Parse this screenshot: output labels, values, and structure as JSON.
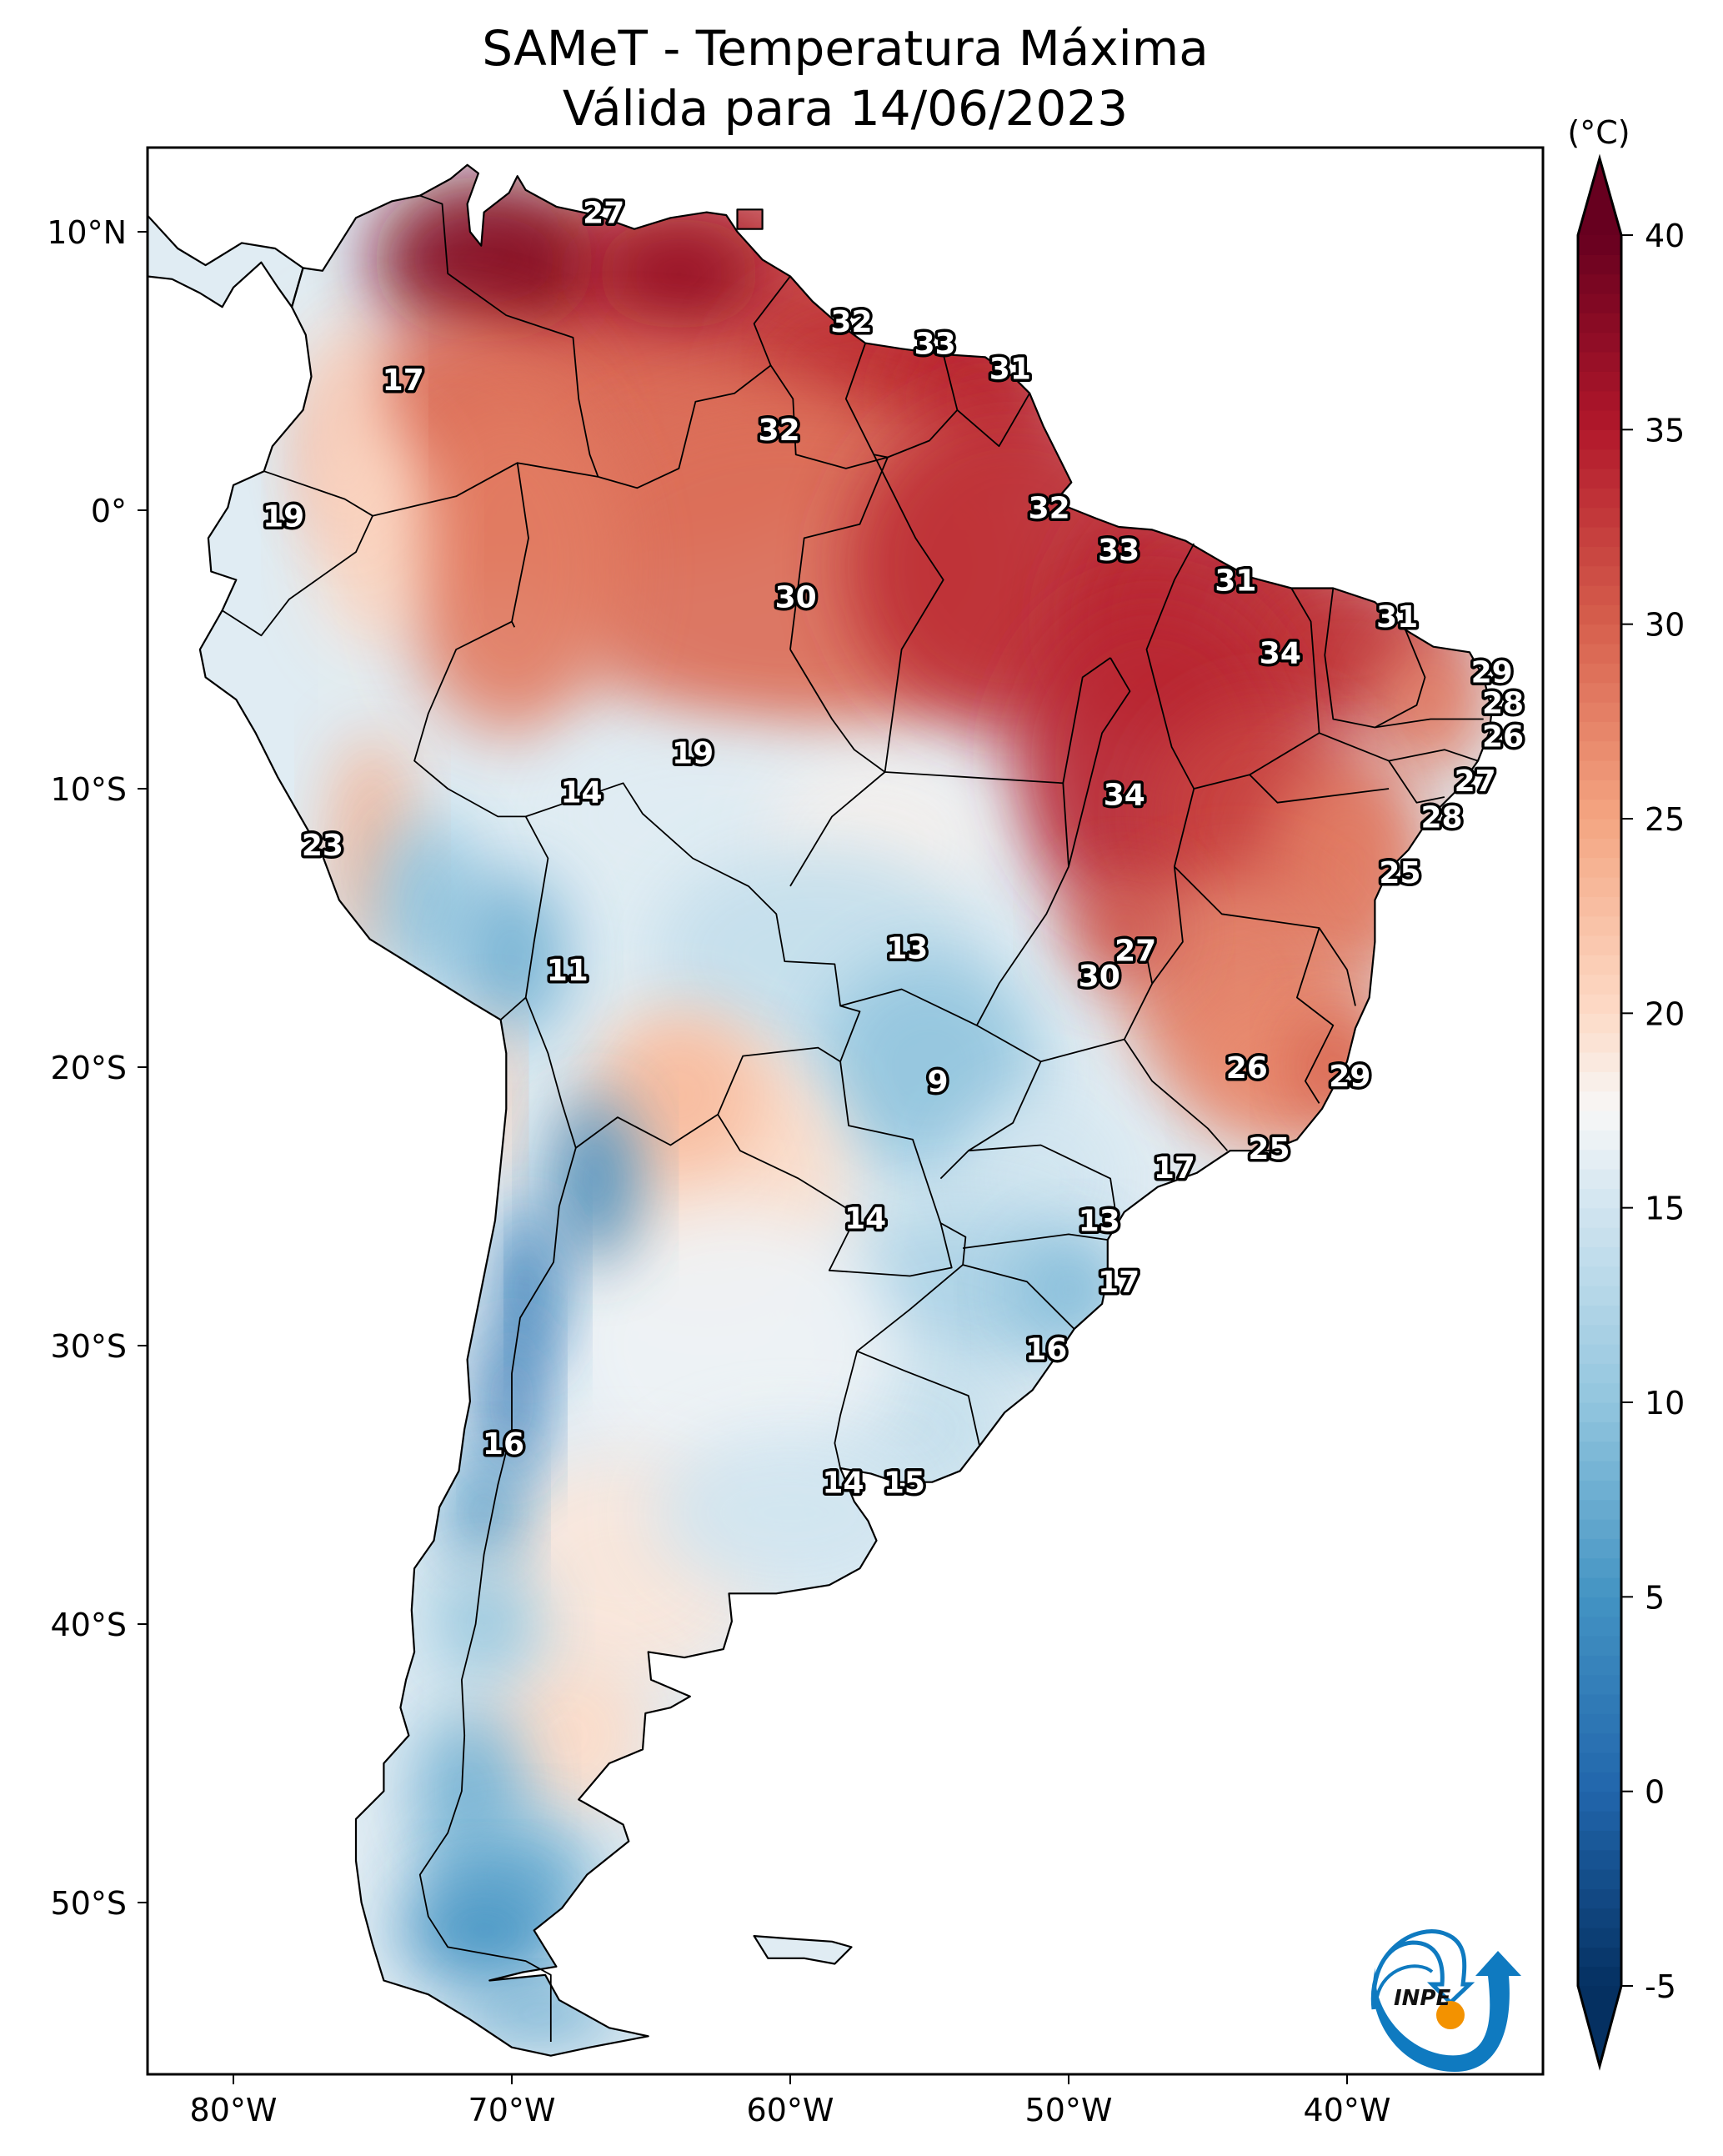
{
  "title": {
    "line1": "SAMeT - Temperatura Máxima",
    "line2": "Válida para 14/06/2023"
  },
  "colorbar": {
    "unit_label": "(°C)",
    "min": -5,
    "max": 40,
    "extend": "both",
    "ticks": [
      -5,
      0,
      5,
      10,
      15,
      20,
      25,
      30,
      35,
      40
    ],
    "tick_labels": [
      "-5",
      "0",
      "5",
      "10",
      "15",
      "20",
      "25",
      "30",
      "35",
      "40"
    ],
    "colormap": "RdBu_r",
    "stops": [
      {
        "v": -5,
        "c": "#053061"
      },
      {
        "v": 0,
        "c": "#2166ac"
      },
      {
        "v": 5,
        "c": "#4393c3"
      },
      {
        "v": 10,
        "c": "#92c5de"
      },
      {
        "v": 15,
        "c": "#d1e5f0"
      },
      {
        "v": 17.5,
        "c": "#f7f7f7"
      },
      {
        "v": 20,
        "c": "#fddbc7"
      },
      {
        "v": 25,
        "c": "#f4a582"
      },
      {
        "v": 30,
        "c": "#d6604d"
      },
      {
        "v": 35,
        "c": "#b2182b"
      },
      {
        "v": 40,
        "c": "#67001f"
      }
    ]
  },
  "logo": {
    "text": "INPE",
    "arc_color": "#0f7ac0",
    "dot_color": "#f39200"
  },
  "chart_data": {
    "type": "heatmap",
    "title": "SAMeT - Temperatura Máxima\nVálida para 14/06/2023",
    "projection": "PlateCarree",
    "xlabel": "",
    "ylabel": "",
    "xlim": [
      -83.1,
      -33.0
    ],
    "ylim": [
      -56.2,
      13.0
    ],
    "x_ticks": [
      -80,
      -70,
      -60,
      -50,
      -40
    ],
    "x_tick_labels": [
      "80°W",
      "70°W",
      "60°W",
      "50°W",
      "40°W"
    ],
    "y_ticks": [
      10,
      0,
      -10,
      -20,
      -30,
      -40,
      -50
    ],
    "y_tick_labels": [
      "10°N",
      "0°",
      "10°S",
      "20°S",
      "30°S",
      "40°S",
      "50°S"
    ],
    "colorbar_label": "(°C)",
    "value_range": [
      -5,
      40
    ],
    "annotations": [
      {
        "lon": -66.7,
        "lat": 10.7,
        "value": 27
      },
      {
        "lon": -73.9,
        "lat": 4.7,
        "value": 17
      },
      {
        "lon": -57.8,
        "lat": 6.8,
        "value": 32
      },
      {
        "lon": -54.8,
        "lat": 6.0,
        "value": 33
      },
      {
        "lon": -52.1,
        "lat": 5.1,
        "value": 31
      },
      {
        "lon": -60.4,
        "lat": 2.9,
        "value": 32
      },
      {
        "lon": -78.2,
        "lat": -0.2,
        "value": 19
      },
      {
        "lon": -50.7,
        "lat": 0.1,
        "value": 32
      },
      {
        "lon": -48.2,
        "lat": -1.4,
        "value": 33
      },
      {
        "lon": -59.8,
        "lat": -3.1,
        "value": 30
      },
      {
        "lon": -44.0,
        "lat": -2.5,
        "value": 31
      },
      {
        "lon": -38.2,
        "lat": -3.8,
        "value": 31
      },
      {
        "lon": -42.4,
        "lat": -5.1,
        "value": 34
      },
      {
        "lon": -34.8,
        "lat": -5.8,
        "value": 29
      },
      {
        "lon": -34.4,
        "lat": -6.9,
        "value": 28
      },
      {
        "lon": -34.4,
        "lat": -8.1,
        "value": 26
      },
      {
        "lon": -63.5,
        "lat": -8.7,
        "value": 19
      },
      {
        "lon": -35.4,
        "lat": -9.7,
        "value": 27
      },
      {
        "lon": -67.5,
        "lat": -10.1,
        "value": 14
      },
      {
        "lon": -48.0,
        "lat": -10.2,
        "value": 34
      },
      {
        "lon": -36.6,
        "lat": -11.0,
        "value": 28
      },
      {
        "lon": -76.8,
        "lat": -12.0,
        "value": 23
      },
      {
        "lon": -38.1,
        "lat": -13.0,
        "value": 25
      },
      {
        "lon": -55.8,
        "lat": -15.7,
        "value": 13
      },
      {
        "lon": -47.6,
        "lat": -15.8,
        "value": 27
      },
      {
        "lon": -68.0,
        "lat": -16.5,
        "value": 11
      },
      {
        "lon": -48.9,
        "lat": -16.7,
        "value": 30
      },
      {
        "lon": -43.6,
        "lat": -20.0,
        "value": 26
      },
      {
        "lon": -39.9,
        "lat": -20.3,
        "value": 29
      },
      {
        "lon": -54.7,
        "lat": -20.5,
        "value": 9
      },
      {
        "lon": -42.8,
        "lat": -22.9,
        "value": 25
      },
      {
        "lon": -46.2,
        "lat": -23.6,
        "value": 17
      },
      {
        "lon": -57.3,
        "lat": -25.4,
        "value": 14
      },
      {
        "lon": -48.9,
        "lat": -25.5,
        "value": 13
      },
      {
        "lon": -48.2,
        "lat": -27.7,
        "value": 17
      },
      {
        "lon": -50.8,
        "lat": -30.1,
        "value": 16
      },
      {
        "lon": -70.3,
        "lat": -33.5,
        "value": 16
      },
      {
        "lon": -58.1,
        "lat": -34.9,
        "value": 14
      },
      {
        "lon": -55.9,
        "lat": -34.9,
        "value": 15
      }
    ],
    "field_regions": [
      {
        "name": "north-amazon-northeast",
        "approx_value": 33
      },
      {
        "name": "venezuela-colombia-lowlands",
        "approx_value": 34
      },
      {
        "name": "western-amazon",
        "approx_value": 29
      },
      {
        "name": "central-brazil-bolivia",
        "approx_value": 17
      },
      {
        "name": "southern-brazil-paraguay",
        "approx_value": 12
      },
      {
        "name": "andes-highlands",
        "approx_value": 5
      },
      {
        "name": "patagonia",
        "approx_value": 12
      },
      {
        "name": "southern-patagonia-chile",
        "approx_value": 7
      }
    ]
  }
}
